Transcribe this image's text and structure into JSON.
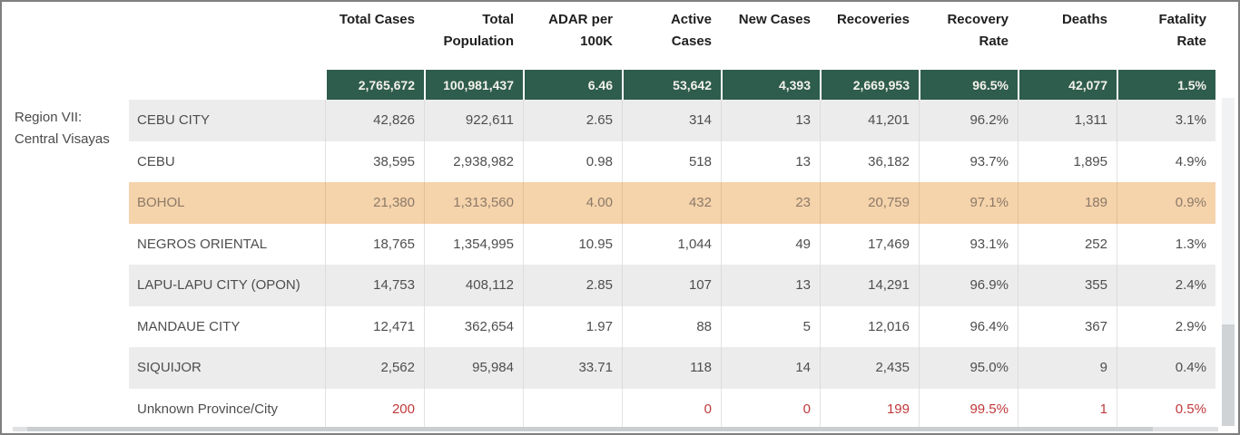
{
  "region": {
    "label": "Region VII: Central Visayas"
  },
  "columns": [
    {
      "label": "Total Cases"
    },
    {
      "label": "Total\nPopulation"
    },
    {
      "label": "ADAR per\n100K"
    },
    {
      "label": "Active\nCases"
    },
    {
      "label": "New Cases"
    },
    {
      "label": "Recoveries"
    },
    {
      "label": "Recovery\nRate"
    },
    {
      "label": "Deaths"
    },
    {
      "label": "Fatality\nRate"
    }
  ],
  "totals": [
    "2,765,672",
    "100,981,437",
    "6.46",
    "53,642",
    "4,393",
    "2,669,953",
    "96.5%",
    "42,077",
    "1.5%"
  ],
  "rows": [
    {
      "name": "CEBU CITY",
      "values": [
        "42,826",
        "922,611",
        "2.65",
        "314",
        "13",
        "41,201",
        "96.2%",
        "1,311",
        "3.1%"
      ]
    },
    {
      "name": "CEBU",
      "values": [
        "38,595",
        "2,938,982",
        "0.98",
        "518",
        "13",
        "36,182",
        "93.7%",
        "1,895",
        "4.9%"
      ]
    },
    {
      "name": "BOHOL",
      "highlighted": true,
      "values": [
        "21,380",
        "1,313,560",
        "4.00",
        "432",
        "23",
        "20,759",
        "97.1%",
        "189",
        "0.9%"
      ]
    },
    {
      "name": "NEGROS ORIENTAL",
      "values": [
        "18,765",
        "1,354,995",
        "10.95",
        "1,044",
        "49",
        "17,469",
        "93.1%",
        "252",
        "1.3%"
      ]
    },
    {
      "name": "LAPU-LAPU CITY (OPON)",
      "values": [
        "14,753",
        "408,112",
        "2.85",
        "107",
        "13",
        "14,291",
        "96.9%",
        "355",
        "2.4%"
      ]
    },
    {
      "name": "MANDAUE CITY",
      "values": [
        "12,471",
        "362,654",
        "1.97",
        "88",
        "5",
        "12,016",
        "96.4%",
        "367",
        "2.9%"
      ]
    },
    {
      "name": "SIQUIJOR",
      "values": [
        "2,562",
        "95,984",
        "33.71",
        "118",
        "14",
        "2,435",
        "95.0%",
        "9",
        "0.4%"
      ]
    },
    {
      "name": "Unknown Province/City",
      "alert": true,
      "values": [
        "200",
        "",
        "",
        "0",
        "0",
        "199",
        "99.5%",
        "1",
        "0.5%"
      ]
    }
  ],
  "colors": {
    "totals_band": "#2e5c4d",
    "highlight_row": "#f5d3ab",
    "stripe_row": "#ececec",
    "alert_text": "#c0393b"
  }
}
